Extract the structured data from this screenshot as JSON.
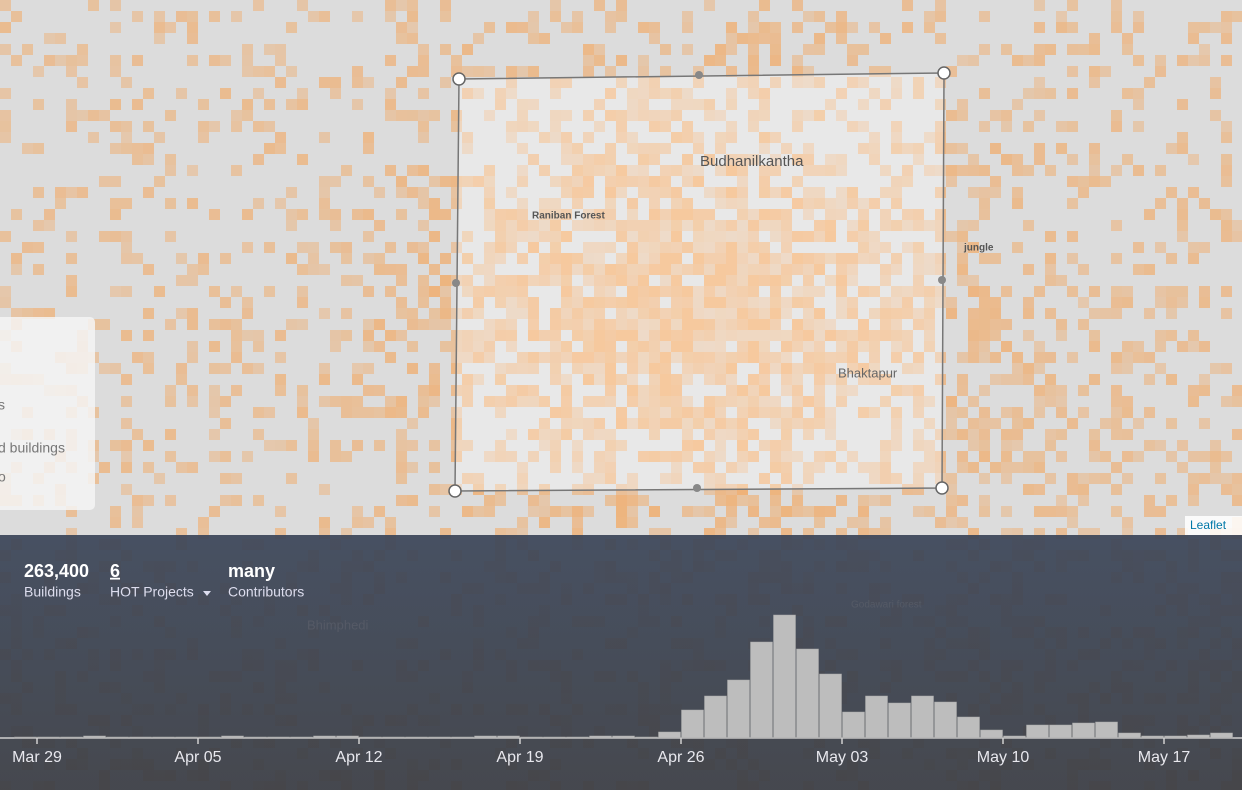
{
  "map": {
    "labels": [
      "Budhanilkantha",
      "Raniban Forest",
      "jungle",
      "Bhaktapur",
      "Leaflet",
      "Bhimphedi",
      "Godawari forest"
    ],
    "legend_panel": [
      "s",
      "d buildings",
      "o"
    ]
  },
  "stats": {
    "buildings": {
      "value": "263,400",
      "label": "Buildings"
    },
    "projects": {
      "value": "6",
      "label": "HOT Projects"
    },
    "contributors": {
      "value": "many",
      "label": "Contributors"
    }
  },
  "chart_data": {
    "type": "bar",
    "color": "#bdbdbd",
    "categories": [
      null,
      "Mar 29",
      null,
      null,
      null,
      null,
      null,
      null,
      "Apr 05",
      null,
      null,
      null,
      null,
      null,
      null,
      "Apr 12",
      null,
      null,
      null,
      null,
      null,
      null,
      "Apr 19",
      null,
      null,
      null,
      null,
      null,
      null,
      "Apr 26",
      null,
      null,
      null,
      null,
      null,
      null,
      "May 03",
      null,
      null,
      null,
      null,
      null,
      null,
      "May 10",
      null,
      null,
      null,
      null,
      null,
      null,
      "May 17",
      null,
      null
    ],
    "values": [
      1,
      1,
      1,
      2,
      1,
      1,
      1,
      1,
      1,
      2,
      1,
      1,
      1,
      2,
      2,
      1,
      1,
      1,
      1,
      1,
      2,
      2,
      1,
      1,
      1,
      2,
      2,
      1,
      6,
      28,
      42,
      58,
      96,
      123,
      89,
      64,
      26,
      42,
      35,
      42,
      36,
      21,
      8,
      2,
      13,
      13,
      15,
      16,
      5,
      2,
      2,
      3,
      5
    ],
    "ylim": [
      0,
      125
    ]
  }
}
